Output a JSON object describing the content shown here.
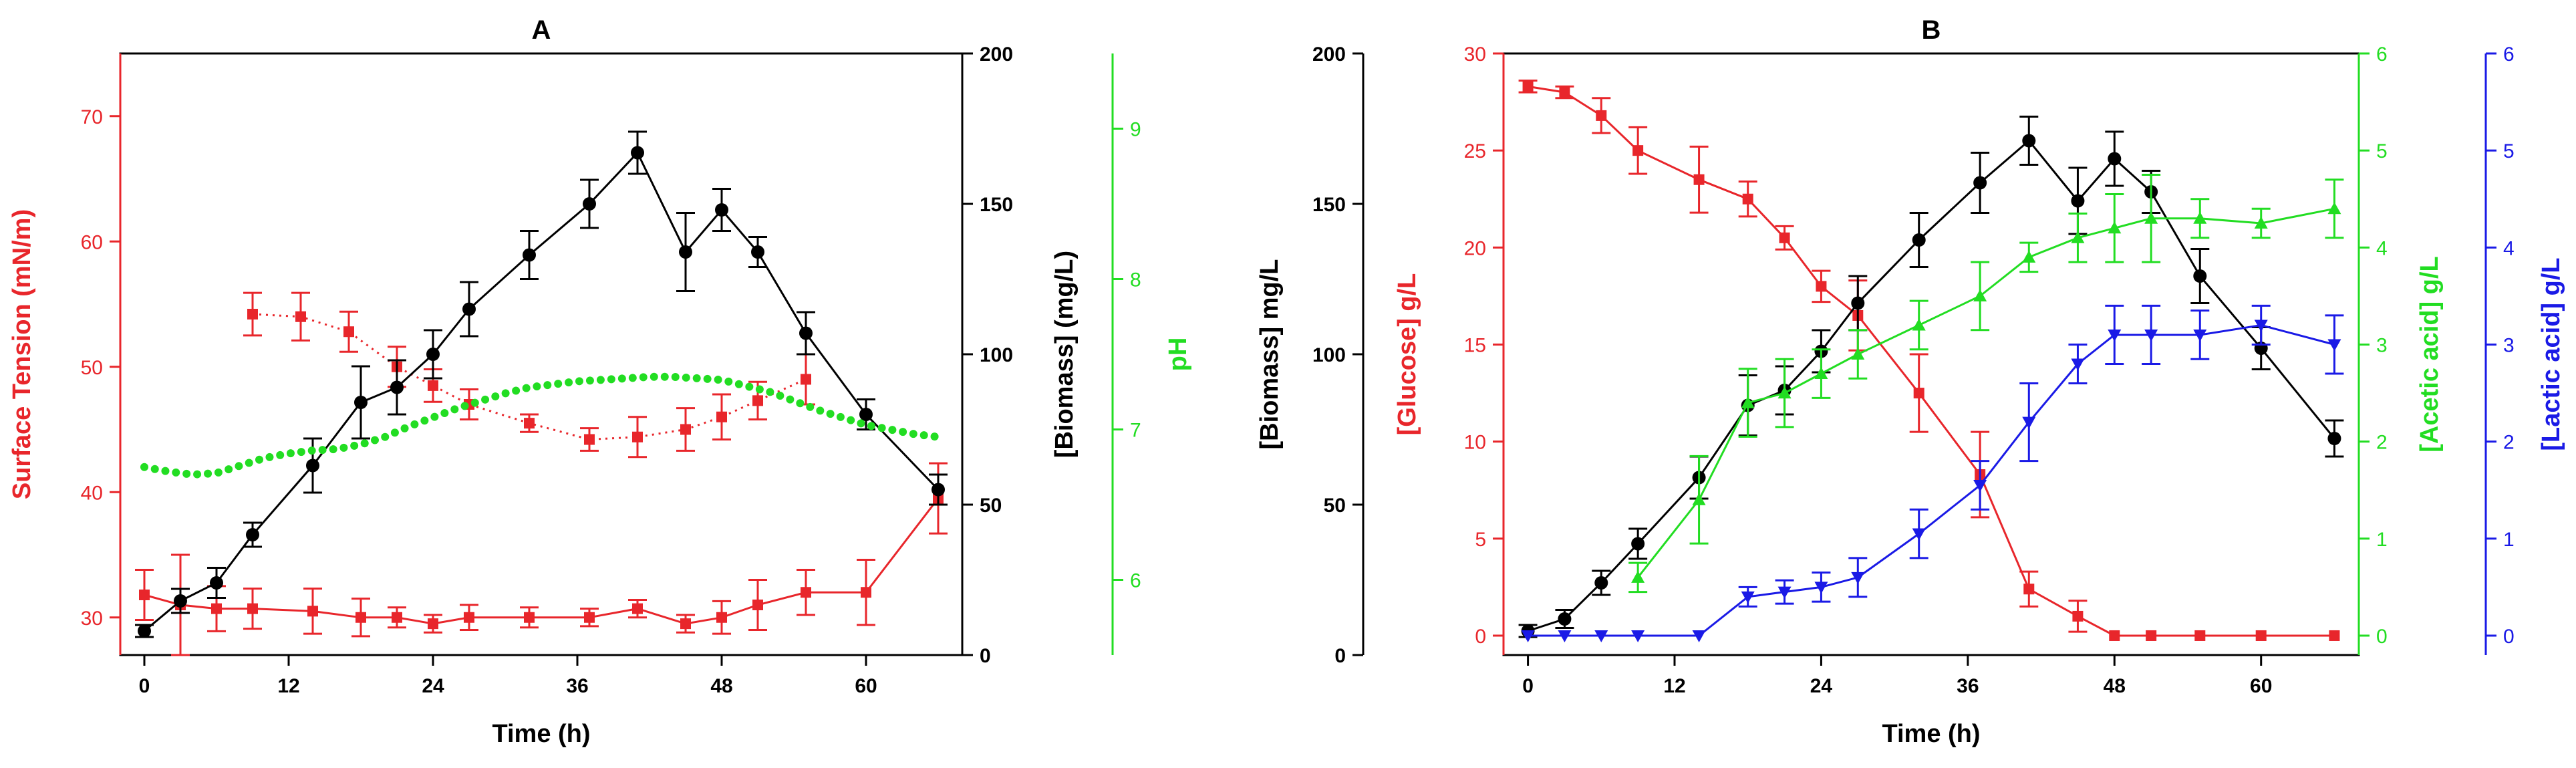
{
  "chart_data": [
    {
      "type": "line",
      "title": "A",
      "xlabel": "Time (h)",
      "x_ticks": [
        0,
        12,
        24,
        36,
        48,
        60
      ],
      "xlim": [
        -2,
        68
      ],
      "axes": [
        {
          "id": "st",
          "side": "left",
          "label": "Surface Tension (mN/m)",
          "ylim": [
            27,
            75
          ],
          "ticks": [
            30,
            40,
            50,
            60,
            70
          ],
          "color": "#e8262b"
        },
        {
          "id": "bio",
          "side": "right",
          "label": "[Biomass] (mg/L)",
          "ylim": [
            0,
            200
          ],
          "ticks": [
            0,
            50,
            100,
            150,
            200
          ],
          "color": "#000000"
        },
        {
          "id": "ph",
          "side": "right-offset",
          "label": "pH",
          "ylim": [
            5.5,
            9.5
          ],
          "ticks": [
            6,
            7,
            8,
            9
          ],
          "color": "#22dd22"
        }
      ],
      "series": [
        {
          "axis": "st",
          "style": "dotted",
          "marker": "square",
          "color": "#e8262b",
          "x": [
            9,
            13,
            17,
            21,
            24,
            27,
            32,
            37,
            41,
            45,
            48,
            51,
            55
          ],
          "y": [
            54.2,
            54.0,
            52.8,
            50.0,
            48.5,
            47.0,
            45.5,
            44.2,
            44.4,
            45.0,
            46.0,
            47.3,
            49.0
          ],
          "err": [
            1.7,
            1.9,
            1.6,
            1.6,
            1.3,
            1.2,
            0.7,
            0.9,
            1.6,
            1.7,
            1.8,
            1.5,
            2.0
          ]
        },
        {
          "axis": "st",
          "style": "solid",
          "marker": "square",
          "color": "#e8262b",
          "x": [
            0,
            3,
            6,
            9,
            14,
            18,
            21,
            24,
            27,
            32,
            37,
            41,
            45,
            48,
            51,
            55,
            60,
            66
          ],
          "y": [
            31.8,
            31.0,
            30.7,
            30.7,
            30.5,
            30.0,
            30.0,
            29.5,
            30.0,
            30.0,
            30.0,
            30.7,
            29.5,
            30.0,
            31.0,
            32.0,
            32.0,
            39.5
          ],
          "err": [
            2.0,
            4.0,
            1.8,
            1.6,
            1.8,
            1.5,
            0.8,
            0.7,
            1.0,
            0.8,
            0.7,
            0.7,
            0.7,
            1.3,
            2.0,
            1.8,
            2.6,
            2.8
          ]
        },
        {
          "axis": "bio",
          "style": "solid",
          "marker": "circle",
          "color": "#000000",
          "x": [
            0,
            3,
            6,
            9,
            14,
            18,
            21,
            24,
            27,
            32,
            37,
            41,
            45,
            48,
            51,
            55,
            60,
            66
          ],
          "y": [
            8,
            18,
            24,
            40,
            63,
            84,
            89,
            100,
            115,
            133,
            150,
            167,
            134,
            148,
            134,
            107,
            80,
            55
          ],
          "err": [
            2,
            4,
            5,
            4,
            9,
            12,
            9,
            8,
            9,
            8,
            8,
            7,
            13,
            7,
            5,
            7,
            5,
            5
          ]
        },
        {
          "axis": "ph",
          "style": "dotted-thick",
          "marker": "none",
          "color": "#22dd22",
          "x": [
            0,
            2,
            4,
            6,
            8,
            10,
            12,
            14,
            16,
            18,
            20,
            22,
            24,
            26,
            28,
            30,
            32,
            34,
            36,
            38,
            40,
            42,
            44,
            46,
            48,
            50,
            52,
            54,
            56,
            58,
            60,
            62,
            64,
            66
          ],
          "y": [
            6.75,
            6.72,
            6.7,
            6.71,
            6.76,
            6.81,
            6.84,
            6.86,
            6.87,
            6.9,
            6.95,
            7.02,
            7.08,
            7.14,
            7.19,
            7.24,
            7.28,
            7.3,
            7.32,
            7.33,
            7.34,
            7.35,
            7.35,
            7.34,
            7.33,
            7.29,
            7.25,
            7.19,
            7.13,
            7.08,
            7.03,
            7.0,
            6.97,
            6.95
          ]
        }
      ]
    },
    {
      "type": "line",
      "title": "B",
      "xlabel": "Time (h)",
      "x_ticks": [
        0,
        12,
        24,
        36,
        48,
        60
      ],
      "xlim": [
        -2,
        68
      ],
      "axes": [
        {
          "id": "bio",
          "side": "left-offset",
          "label": "[Biomass] mg/L",
          "ylim": [
            0,
            200
          ],
          "ticks": [
            0,
            50,
            100,
            150,
            200
          ],
          "color": "#000000"
        },
        {
          "id": "glu",
          "side": "left",
          "label": "[Glucose] g/L",
          "ylim": [
            -1,
            30
          ],
          "ticks": [
            0,
            5,
            10,
            15,
            20,
            25,
            30
          ],
          "color": "#e8262b"
        },
        {
          "id": "ace",
          "side": "right",
          "label": "[Acetic acid] g/L",
          "ylim": [
            -0.2,
            6
          ],
          "ticks": [
            0,
            1,
            2,
            3,
            4,
            5,
            6
          ],
          "color": "#22dd22"
        },
        {
          "id": "lac",
          "side": "right-offset",
          "label": "[Lactic acid] g/L",
          "ylim": [
            -0.2,
            6
          ],
          "ticks": [
            0,
            1,
            2,
            3,
            4,
            5,
            6
          ],
          "color": "#1a1ae6"
        }
      ],
      "series": [
        {
          "axis": "glu",
          "style": "solid",
          "marker": "square",
          "color": "#e8262b",
          "x": [
            0,
            3,
            6,
            9,
            14,
            18,
            21,
            24,
            27,
            32,
            37,
            41,
            45,
            48,
            51,
            55,
            60,
            66
          ],
          "y": [
            28.3,
            28.0,
            26.8,
            25.0,
            23.5,
            22.5,
            20.5,
            18.0,
            16.5,
            12.5,
            8.3,
            2.4,
            1.0,
            0.0,
            0.0,
            0.0,
            0.0,
            0.0
          ],
          "err": [
            0.3,
            0.3,
            0.9,
            1.2,
            1.7,
            0.9,
            0.6,
            0.8,
            1.8,
            2.0,
            2.2,
            0.9,
            0.8,
            0.0,
            0.0,
            0.0,
            0.0,
            0.0
          ]
        },
        {
          "axis": "bio",
          "style": "solid",
          "marker": "circle",
          "color": "#000000",
          "x": [
            0,
            3,
            6,
            9,
            14,
            18,
            21,
            24,
            27,
            32,
            37,
            41,
            45,
            48,
            51,
            55,
            60,
            66
          ],
          "y": [
            8,
            12,
            24,
            37,
            59,
            83,
            88,
            101,
            117,
            138,
            157,
            171,
            151,
            165,
            154,
            126,
            102,
            72
          ],
          "err": [
            2,
            3,
            4,
            5,
            7,
            10,
            8,
            7,
            9,
            9,
            10,
            8,
            11,
            9,
            7,
            9,
            7,
            6
          ]
        },
        {
          "axis": "ace",
          "style": "solid",
          "marker": "triangle-up",
          "color": "#22dd22",
          "x": [
            9,
            14,
            18,
            21,
            24,
            27,
            32,
            37,
            41,
            45,
            48,
            51,
            55,
            60,
            66
          ],
          "y": [
            0.6,
            1.4,
            2.4,
            2.5,
            2.7,
            2.9,
            3.2,
            3.5,
            3.9,
            4.1,
            4.2,
            4.3,
            4.3,
            4.25,
            4.4
          ],
          "err": [
            0.15,
            0.45,
            0.35,
            0.35,
            0.25,
            0.25,
            0.25,
            0.35,
            0.15,
            0.25,
            0.35,
            0.45,
            0.2,
            0.15,
            0.3
          ]
        },
        {
          "axis": "lac",
          "style": "solid",
          "marker": "triangle-down",
          "color": "#1a1ae6",
          "x": [
            0,
            3,
            6,
            9,
            14,
            18,
            21,
            24,
            27,
            32,
            37,
            41,
            45,
            48,
            51,
            55,
            60,
            66
          ],
          "y": [
            0.0,
            0.0,
            0.0,
            0.0,
            0.0,
            0.4,
            0.45,
            0.5,
            0.6,
            1.05,
            1.55,
            2.2,
            2.8,
            3.1,
            3.1,
            3.1,
            3.2,
            3.0
          ],
          "err": [
            0,
            0,
            0,
            0,
            0,
            0.1,
            0.12,
            0.15,
            0.2,
            0.25,
            0.25,
            0.4,
            0.2,
            0.3,
            0.3,
            0.25,
            0.2,
            0.3
          ]
        }
      ]
    }
  ]
}
